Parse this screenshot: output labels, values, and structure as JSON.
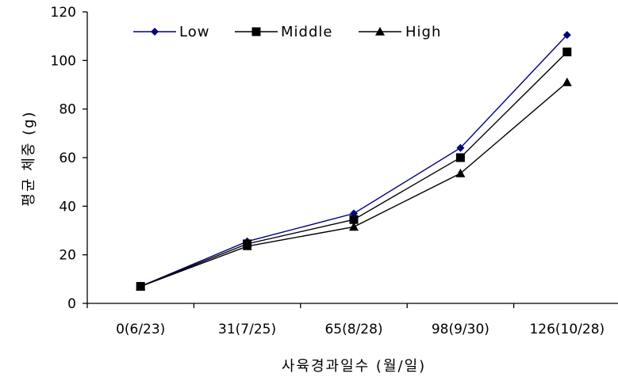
{
  "chart_data": {
    "type": "line",
    "xlabel": "사육경과일수 (월/일)",
    "ylabel": "평균 체중 (g)",
    "categories": [
      "0(6/23)",
      "31(7/25)",
      "65(8/28)",
      "98(9/30)",
      "126(10/28)"
    ],
    "ylim": [
      0,
      120
    ],
    "yticks": [
      0,
      20,
      40,
      60,
      80,
      100,
      120
    ],
    "grid": false,
    "legend_position": "top-left",
    "series": [
      {
        "name": "Low",
        "values": [
          7,
          25.5,
          37,
          64,
          110.5
        ],
        "color": "#000080",
        "marker": "diamond"
      },
      {
        "name": "Middle",
        "values": [
          7,
          24.5,
          34.5,
          60,
          103.5
        ],
        "color": "#000000",
        "marker": "square"
      },
      {
        "name": "High",
        "values": [
          7,
          23.5,
          31.5,
          53.5,
          91
        ],
        "color": "#000000",
        "marker": "triangle"
      }
    ]
  }
}
